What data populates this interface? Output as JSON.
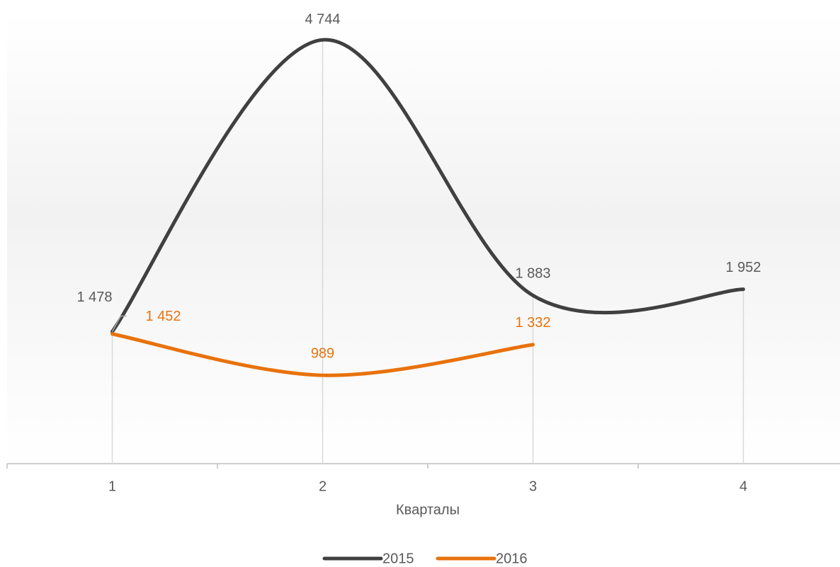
{
  "chart_data": {
    "type": "line",
    "smooth": true,
    "x_label": "Кварталы",
    "categories": [
      "1",
      "2",
      "3",
      "4"
    ],
    "series": [
      {
        "name": "2015",
        "color": "#404040",
        "label_color": "#595959",
        "values": [
          1478,
          4744,
          1883,
          1952
        ],
        "value_labels": [
          "1 478",
          "4 744",
          "1 883",
          "1 952"
        ]
      },
      {
        "name": "2016",
        "color": "#e8720c",
        "label_color": "#e8720c",
        "values": [
          1452,
          989,
          1332,
          null
        ],
        "value_labels": [
          "1 452",
          "989",
          "1 332",
          null
        ]
      }
    ],
    "ylim": [
      0,
      5000
    ],
    "legend": "bottom"
  }
}
